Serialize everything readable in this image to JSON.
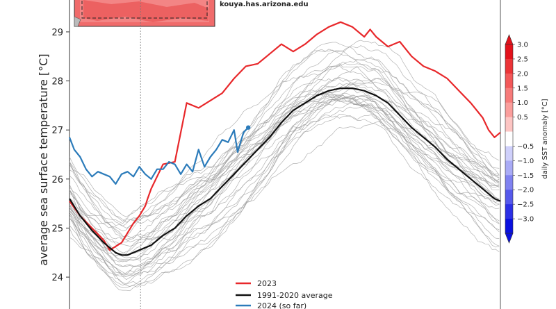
{
  "credit": "kouya.has.arizona.edu",
  "colors": {
    "y2023": "#e8282b",
    "average": "#111111",
    "y2024": "#2b7bba",
    "history": "#9a9a9a"
  },
  "chart_data": {
    "type": "line",
    "ylabel": "average sea surface temperature [°C]",
    "ylim": [
      23.35,
      29.65
    ],
    "xlim": [
      1,
      365
    ],
    "yticks": [
      "24",
      "25",
      "26",
      "27",
      "28",
      "29"
    ],
    "today_marker_day": 61,
    "legend": {
      "placement": "bottom-center",
      "entries": [
        "2023",
        "1991-2020 average",
        "2024 (so far)"
      ]
    },
    "series": [
      {
        "name": "2023",
        "x": [
          1,
          10,
          20,
          30,
          35,
          45,
          55,
          60,
          65,
          67,
          70,
          75,
          80,
          90,
          100,
          110,
          120,
          130,
          140,
          150,
          160,
          170,
          180,
          190,
          200,
          210,
          220,
          230,
          240,
          250,
          255,
          260,
          270,
          280,
          290,
          300,
          310,
          320,
          330,
          340,
          350,
          355,
          360,
          365
        ],
        "y": [
          25.55,
          25.25,
          25.0,
          24.75,
          24.55,
          24.7,
          25.1,
          25.25,
          25.45,
          25.6,
          25.8,
          26.05,
          26.3,
          26.35,
          27.55,
          27.45,
          27.6,
          27.75,
          28.05,
          28.3,
          28.35,
          28.55,
          28.75,
          28.6,
          28.75,
          28.95,
          29.1,
          29.2,
          29.1,
          28.9,
          29.05,
          28.9,
          28.7,
          28.8,
          28.5,
          28.3,
          28.2,
          28.05,
          27.8,
          27.55,
          27.25,
          27.0,
          26.85,
          26.95
        ]
      },
      {
        "name": "1991-2020 average",
        "x": [
          1,
          10,
          20,
          30,
          40,
          45,
          50,
          60,
          70,
          80,
          90,
          100,
          110,
          120,
          130,
          140,
          150,
          160,
          170,
          180,
          190,
          200,
          210,
          220,
          230,
          240,
          250,
          260,
          270,
          280,
          290,
          300,
          310,
          320,
          330,
          340,
          350,
          360,
          365
        ],
        "y": [
          25.6,
          25.25,
          24.95,
          24.7,
          24.5,
          24.45,
          24.45,
          24.55,
          24.65,
          24.85,
          25.0,
          25.25,
          25.45,
          25.6,
          25.85,
          26.1,
          26.35,
          26.6,
          26.85,
          27.15,
          27.4,
          27.55,
          27.7,
          27.8,
          27.85,
          27.85,
          27.8,
          27.7,
          27.55,
          27.3,
          27.05,
          26.85,
          26.65,
          26.4,
          26.2,
          26.0,
          25.8,
          25.6,
          25.55
        ]
      },
      {
        "name": "2024 (so far)",
        "x": [
          1,
          5,
          10,
          15,
          20,
          25,
          30,
          35,
          40,
          45,
          50,
          55,
          60,
          65,
          70,
          75,
          80,
          85,
          90,
          95,
          100,
          105,
          110,
          115,
          120,
          125,
          130,
          135,
          140,
          143,
          148,
          152
        ],
        "y": [
          26.85,
          26.6,
          26.45,
          26.2,
          26.05,
          26.15,
          26.1,
          26.05,
          25.9,
          26.1,
          26.15,
          26.05,
          26.25,
          26.1,
          26.0,
          26.2,
          26.2,
          26.35,
          26.3,
          26.1,
          26.3,
          26.15,
          26.6,
          26.25,
          26.45,
          26.6,
          26.8,
          26.75,
          27.0,
          26.55,
          26.95,
          27.05
        ]
      }
    ],
    "colorbar": {
      "title": "daily SST anomaly [°C]",
      "ticks": [
        "3.0",
        "2.5",
        "2.0",
        "1.5",
        "1.0",
        "0.5",
        "−0.5",
        "−1.0",
        "−1.5",
        "−2.0",
        "−2.5",
        "−3.0"
      ],
      "colors": [
        "#e3111b",
        "#ec3437",
        "#f35859",
        "#f77b7a",
        "#fb9e9c",
        "#fdc5c3",
        "#ffffff",
        "#cfd0fb",
        "#a9abf6",
        "#8082f1",
        "#5659ec",
        "#2c30e6",
        "#0a10e0"
      ]
    }
  }
}
